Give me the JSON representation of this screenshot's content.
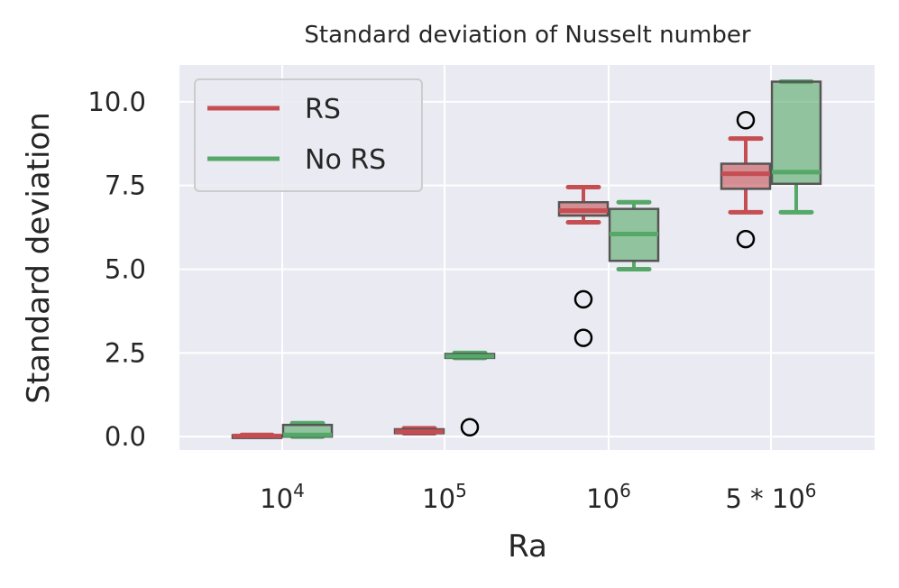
{
  "chart_data": {
    "type": "box",
    "title": "Standard deviation of Nusselt number",
    "xlabel": "Ra",
    "ylabel": "Standard deviation",
    "ylim": [
      -0.4,
      11.1
    ],
    "yticks": [
      "0.0",
      "2.5",
      "5.0",
      "7.5",
      "10.0"
    ],
    "ytick_values": [
      0,
      2.5,
      5,
      7.5,
      10
    ],
    "categories": [
      {
        "base": "10",
        "exp": "4"
      },
      {
        "base": "10",
        "exp": "5"
      },
      {
        "base": "10",
        "exp": "6"
      },
      {
        "prefix": "5 * ",
        "base": "10",
        "exp": "6"
      }
    ],
    "grid": true,
    "legend_position": "upper-left",
    "series": [
      {
        "name": "RS",
        "color": "#c44e52",
        "boxes": [
          {
            "whislo": 0.0,
            "q1": 0.0,
            "med": 0.02,
            "q3": 0.04,
            "whishi": 0.05,
            "fliers": []
          },
          {
            "whislo": 0.1,
            "q1": 0.1,
            "med": 0.15,
            "q3": 0.22,
            "whishi": 0.25,
            "fliers": []
          },
          {
            "whislo": 6.4,
            "q1": 6.6,
            "med": 6.75,
            "q3": 7.0,
            "whishi": 7.45,
            "fliers": [
              4.1,
              2.95
            ]
          },
          {
            "whislo": 6.7,
            "q1": 7.4,
            "med": 7.85,
            "q3": 8.15,
            "whishi": 8.9,
            "fliers": [
              9.45,
              5.9
            ]
          }
        ]
      },
      {
        "name": "No RS",
        "color": "#55a868",
        "boxes": [
          {
            "whislo": 0.0,
            "q1": 0.0,
            "med": 0.05,
            "q3": 0.35,
            "whishi": 0.4,
            "fliers": []
          },
          {
            "whislo": 2.35,
            "q1": 2.35,
            "med": 2.4,
            "q3": 2.47,
            "whishi": 2.5,
            "fliers": [
              0.28
            ]
          },
          {
            "whislo": 5.0,
            "q1": 5.25,
            "med": 6.05,
            "q3": 6.8,
            "whishi": 7.0,
            "fliers": []
          },
          {
            "whislo": 6.7,
            "q1": 7.55,
            "med": 7.9,
            "q3": 10.6,
            "whishi": 10.6,
            "fliers": []
          }
        ]
      }
    ]
  }
}
